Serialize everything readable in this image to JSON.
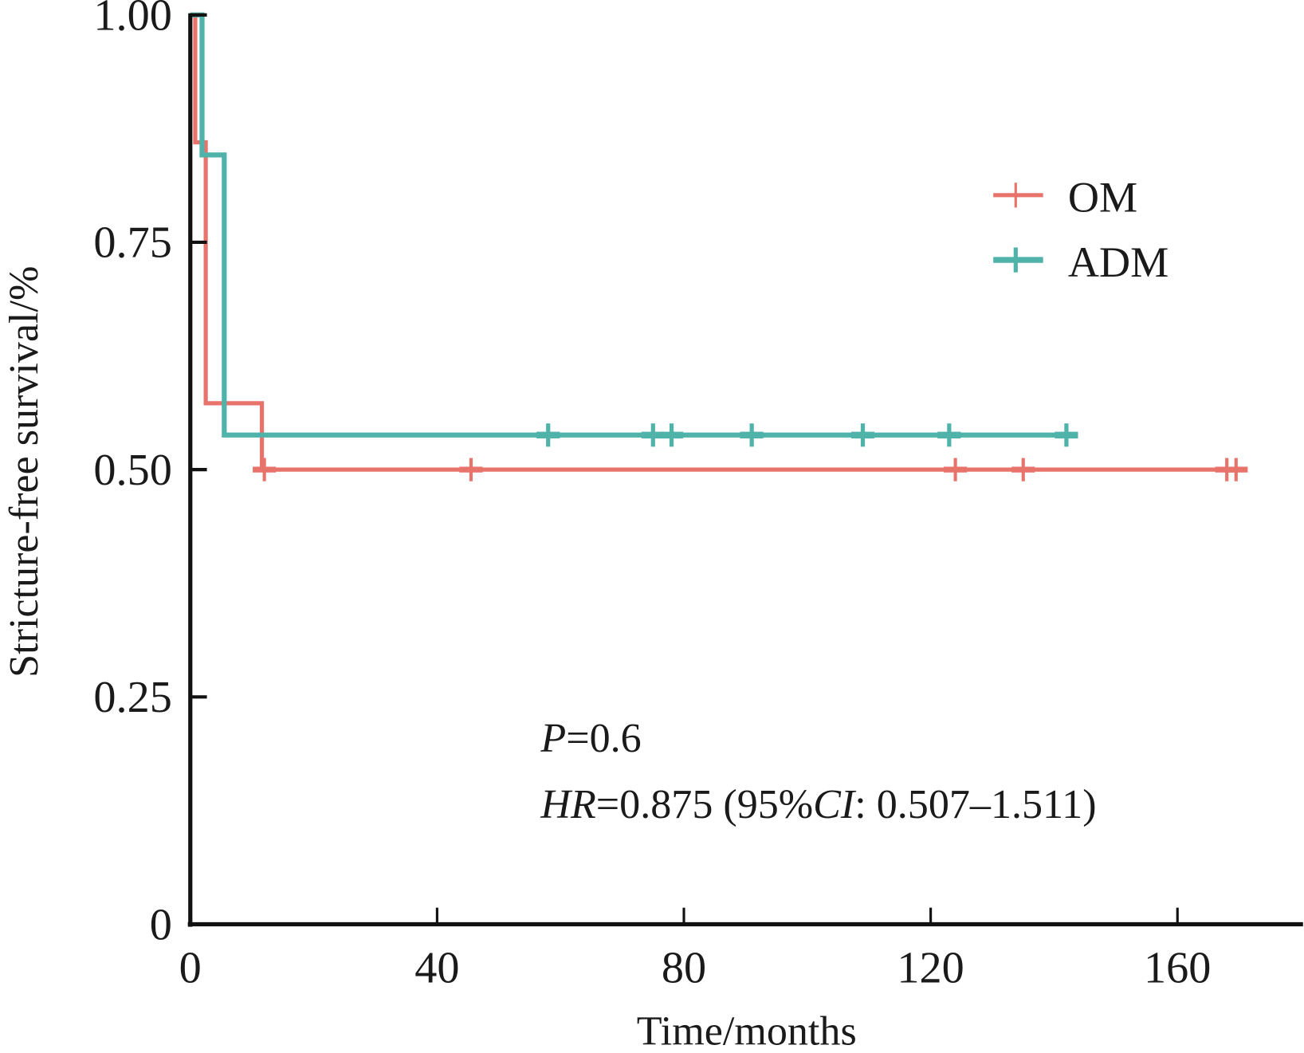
{
  "chart_data": {
    "type": "line",
    "subtype": "kaplan-meier",
    "xlabel": "Time/months",
    "ylabel": "Stricture-free survival/%",
    "xlim": [
      0,
      180
    ],
    "ylim": [
      0,
      1
    ],
    "xticks": [
      0,
      40,
      80,
      120,
      160
    ],
    "xtick_labels": [
      "0",
      "40",
      "80",
      "120",
      "160"
    ],
    "yticks": [
      0,
      0.25,
      0.5,
      0.75,
      1.0
    ],
    "ytick_labels": [
      "0",
      "0.25",
      "0.50",
      "0.75",
      "1.00"
    ],
    "grid": false,
    "legend_position": "top-right",
    "series": [
      {
        "name": "OM",
        "color": "#e8736b",
        "steps": [
          [
            0,
            1.0
          ],
          [
            0.8,
            0.86
          ],
          [
            2.5,
            0.573
          ],
          [
            11.6,
            0.5
          ]
        ],
        "end": 171,
        "censored": [
          12,
          45.5,
          124,
          135,
          168,
          169.5
        ]
      },
      {
        "name": "ADM",
        "color": "#4fb3aa",
        "steps": [
          [
            0,
            1.0
          ],
          [
            1.9,
            0.846
          ],
          [
            5.5,
            0.538
          ]
        ],
        "end": 143.5,
        "censored": [
          58,
          75,
          78,
          91,
          109,
          123,
          142
        ]
      }
    ],
    "annotations": {
      "p_label": "P",
      "p_value": "=0.6",
      "hr_label": "HR",
      "hr_value": "=0.875 (95%",
      "ci_label": "CI",
      "ci_value": ": 0.507–1.511)"
    }
  }
}
